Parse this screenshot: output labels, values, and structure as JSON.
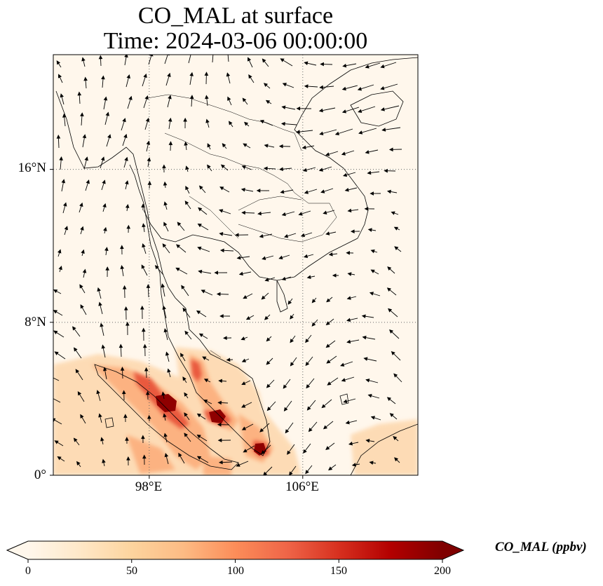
{
  "title": {
    "line1": "CO_MAL at surface",
    "line2": "Time: 2024-03-06 00:00:00"
  },
  "map": {
    "lat_range": [
      0,
      22
    ],
    "lon_range": [
      93,
      112
    ],
    "lat_ticks": [
      {
        "value": 16,
        "label": "16°N"
      },
      {
        "value": 8,
        "label": "8°N"
      },
      {
        "value": 0,
        "label": "0°"
      }
    ],
    "lon_ticks": [
      {
        "value": 98,
        "label": "98°E"
      },
      {
        "value": 106,
        "label": "106°E"
      }
    ],
    "gridlines": "dotted",
    "wind_vectors": true
  },
  "chart_data": {
    "type": "heatmap",
    "variable": "CO_MAL",
    "units": "ppbv",
    "colormap": "OrRd",
    "hotspots": [
      {
        "lon": 99.0,
        "lat": 3.8,
        "value": 190
      },
      {
        "lon": 101.5,
        "lat": 3.1,
        "value": 185
      },
      {
        "lon": 104.0,
        "lat": 1.3,
        "value": 180
      },
      {
        "lon": 102.3,
        "lat": 5.5,
        "value": 120
      },
      {
        "lon": 100.0,
        "lat": 5.0,
        "value": 110
      }
    ]
  },
  "colorbar": {
    "label": "CO_MAL (ppbv)",
    "min": 0,
    "max": 200,
    "extend": "both",
    "ticks": [
      "0",
      "50",
      "100",
      "150",
      "200"
    ],
    "colors": [
      "#fff7ec",
      "#fee8c8",
      "#fdd49e",
      "#fdbb84",
      "#fc8d59",
      "#ef6548",
      "#d7301f",
      "#b30000",
      "#7f0000"
    ]
  }
}
